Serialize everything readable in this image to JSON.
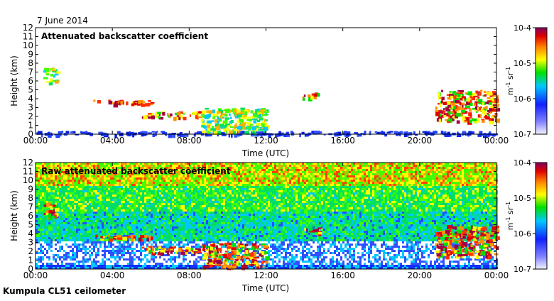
{
  "date_label": "7 June 2014",
  "footer_label": "Kumpula CL51 ceilometer",
  "chart_data": [
    {
      "type": "heatmap",
      "title": "Attenuated backscatter coefficient",
      "xlabel": "Time (UTC)",
      "ylabel": "Height (km)",
      "xlim": [
        "00:00",
        "24:00"
      ],
      "ylim": [
        0,
        12
      ],
      "xticks": [
        "00:00",
        "04:00",
        "08:00",
        "12:00",
        "16:00",
        "20:00",
        "00:00"
      ],
      "yticks": [
        0,
        1,
        2,
        3,
        4,
        5,
        6,
        7,
        8,
        9,
        10,
        11,
        12
      ],
      "colorbar": {
        "scale": "log",
        "range": [
          1e-07,
          0.0001
        ],
        "ticks": [
          "10-7",
          "10-6",
          "10-5",
          "10-4"
        ],
        "label": "m-1 sr-1"
      },
      "features": [
        {
          "desc": "surface layer",
          "t0": 0.0,
          "t1": 24.0,
          "h0": 0.0,
          "h1": 0.4,
          "level": "low"
        },
        {
          "desc": "cloud",
          "t0": 0.4,
          "t1": 1.1,
          "h0": 5.8,
          "h1": 7.5,
          "level": "mid"
        },
        {
          "desc": "cloud",
          "t0": 3.0,
          "t1": 6.0,
          "h0": 3.4,
          "h1": 3.9,
          "level": "high"
        },
        {
          "desc": "cloud",
          "t0": 5.5,
          "t1": 8.5,
          "h0": 1.9,
          "h1": 2.6,
          "level": "high"
        },
        {
          "desc": "cloud",
          "t0": 8.6,
          "t1": 12.0,
          "h0": 0.3,
          "h1": 3.0,
          "level": "mid"
        },
        {
          "desc": "cloud",
          "t0": 13.8,
          "t1": 14.8,
          "h0": 4.1,
          "h1": 4.7,
          "level": "high"
        },
        {
          "desc": "cloud",
          "t0": 20.8,
          "t1": 24.0,
          "h0": 1.5,
          "h1": 5.0,
          "level": "high"
        }
      ]
    },
    {
      "type": "heatmap",
      "title": "Raw attenuated backscatter coefficient",
      "xlabel": "Time (UTC)",
      "ylabel": "Height (km)",
      "xlim": [
        "00:00",
        "24:00"
      ],
      "ylim": [
        0,
        12
      ],
      "xticks": [
        "00:00",
        "04:00",
        "08:00",
        "12:00",
        "16:00",
        "20:00",
        "00:00"
      ],
      "yticks": [
        0,
        1,
        2,
        3,
        4,
        5,
        6,
        7,
        8,
        9,
        10,
        11,
        12
      ],
      "colorbar": {
        "scale": "log",
        "range": [
          1e-07,
          0.0001
        ],
        "ticks": [
          "10-7",
          "10-6",
          "10-5",
          "10-4"
        ],
        "label": "m-1 sr-1"
      },
      "features": [
        {
          "desc": "cloud",
          "t0": 0.4,
          "t1": 1.1,
          "h0": 5.8,
          "h1": 7.5,
          "level": "high"
        },
        {
          "desc": "cloud",
          "t0": 3.0,
          "t1": 6.0,
          "h0": 3.4,
          "h1": 3.9,
          "level": "high"
        },
        {
          "desc": "cloud",
          "t0": 5.5,
          "t1": 8.5,
          "h0": 1.9,
          "h1": 2.6,
          "level": "high"
        },
        {
          "desc": "cloud",
          "t0": 8.6,
          "t1": 12.0,
          "h0": 0.3,
          "h1": 3.0,
          "level": "high"
        },
        {
          "desc": "cloud",
          "t0": 13.8,
          "t1": 14.8,
          "h0": 4.1,
          "h1": 4.7,
          "level": "high"
        },
        {
          "desc": "cloud",
          "t0": 20.8,
          "t1": 24.0,
          "h0": 1.5,
          "h1": 5.0,
          "level": "high"
        }
      ]
    }
  ]
}
